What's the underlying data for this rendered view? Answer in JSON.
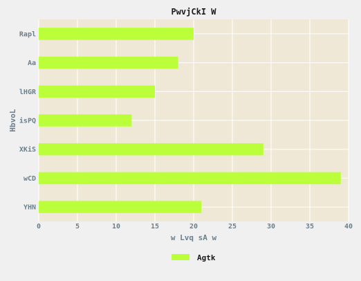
{
  "chart_data": {
    "type": "bar",
    "orientation": "horizontal",
    "title": "PwvjCkI W",
    "xlabel": "w Lvq sA w",
    "ylabel": "HbvoL",
    "categories": [
      "YHN",
      "wCD",
      "XKiS",
      "isPQ",
      "lHGR",
      "Aa",
      "Rapl"
    ],
    "series": [
      {
        "name": "Agtk",
        "values": [
          21,
          39,
          29,
          12,
          15,
          18,
          20
        ]
      }
    ],
    "xlim": [
      0,
      40
    ],
    "xticks": [
      0,
      5,
      10,
      15,
      20,
      25,
      30,
      35,
      40
    ],
    "grid": true,
    "legend_position": "bottom-center",
    "colors": {
      "bar": "#baff3a",
      "plot_background": "#efe8d6",
      "grid": "#ffffff",
      "page_background": "#f0f0f0"
    }
  }
}
